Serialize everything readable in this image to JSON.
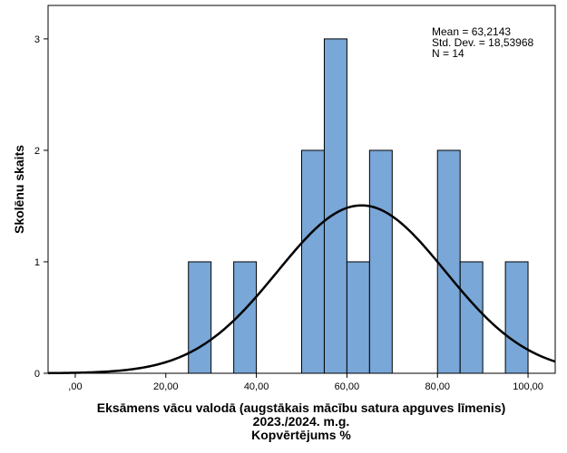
{
  "chart_data": {
    "type": "bar",
    "subtype": "histogram",
    "bin_width": 5,
    "bins": [
      {
        "start": 25,
        "end": 30,
        "count": 1
      },
      {
        "start": 35,
        "end": 40,
        "count": 1
      },
      {
        "start": 50,
        "end": 55,
        "count": 2
      },
      {
        "start": 55,
        "end": 60,
        "count": 3
      },
      {
        "start": 60,
        "end": 65,
        "count": 1
      },
      {
        "start": 65,
        "end": 70,
        "count": 2
      },
      {
        "start": 80,
        "end": 85,
        "count": 2
      },
      {
        "start": 85,
        "end": 90,
        "count": 1
      },
      {
        "start": 95,
        "end": 100,
        "count": 1
      }
    ],
    "xlim": [
      -6,
      106
    ],
    "ylim": [
      0,
      3.3
    ],
    "x_ticks": [
      0,
      20,
      40,
      60,
      80,
      100
    ],
    "x_tick_labels": [
      ",00",
      "20,00",
      "40,00",
      "60,00",
      "80,00",
      "100,00"
    ],
    "y_ticks": [
      0,
      1,
      2,
      3
    ],
    "y_tick_labels": [
      "0",
      "1",
      "2",
      "3"
    ],
    "xlabel_lines": [
      "Eksāmens vācu valodā (augstākais mācību satura apguves līmenis)",
      "2023./2024. m.g.",
      "Kopvērtējums %"
    ],
    "ylabel": "Skolēnu skaits",
    "normal_curve": {
      "mean": 63.2143,
      "std_dev": 18.53968,
      "n": 14
    },
    "stats_text": [
      "Mean = 63,2143",
      "Std. Dev. = 18,53968",
      "N = 14"
    ],
    "grid": false,
    "bar_color": "#79A7D7",
    "bar_edge_color": "#000000",
    "curve_color": "#000000"
  }
}
